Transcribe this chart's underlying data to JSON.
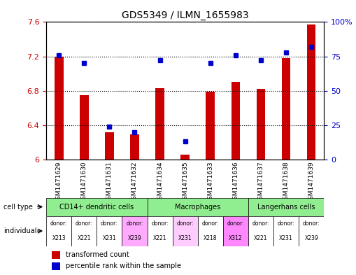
{
  "title": "GDS5349 / ILMN_1655983",
  "samples": [
    "GSM1471629",
    "GSM1471630",
    "GSM1471631",
    "GSM1471632",
    "GSM1471634",
    "GSM1471635",
    "GSM1471633",
    "GSM1471636",
    "GSM1471637",
    "GSM1471638",
    "GSM1471639"
  ],
  "red_values": [
    7.2,
    6.75,
    6.32,
    6.29,
    6.83,
    6.06,
    6.79,
    6.9,
    6.82,
    7.18,
    7.57
  ],
  "blue_values": [
    76,
    70,
    24,
    20,
    72,
    13,
    70,
    76,
    72,
    78,
    82
  ],
  "ylim_left": [
    6.0,
    7.6
  ],
  "ylim_right": [
    0,
    100
  ],
  "yticks_left": [
    6.0,
    6.4,
    6.8,
    7.2,
    7.6
  ],
  "yticks_right": [
    0,
    25,
    50,
    75,
    100
  ],
  "ytick_labels_left": [
    "6",
    "6.4",
    "6.8",
    "7.2",
    "7.6"
  ],
  "ytick_labels_right": [
    "0",
    "25",
    "50",
    "75",
    "100%"
  ],
  "cell_types": [
    {
      "label": "CD14+ dendritic cells",
      "start": 0,
      "end": 4,
      "color": "#90ee90"
    },
    {
      "label": "Macrophages",
      "start": 4,
      "end": 8,
      "color": "#90ee90"
    },
    {
      "label": "Langerhans cells",
      "start": 8,
      "end": 11,
      "color": "#90ee90"
    }
  ],
  "individuals": [
    {
      "donor": "X213",
      "col": 0,
      "color": "#ffffff"
    },
    {
      "donor": "X221",
      "col": 1,
      "color": "#ffffff"
    },
    {
      "donor": "X231",
      "col": 2,
      "color": "#ffffff"
    },
    {
      "donor": "X239",
      "col": 3,
      "color": "#ffaaff"
    },
    {
      "donor": "X221",
      "col": 4,
      "color": "#ffffff"
    },
    {
      "donor": "X231",
      "col": 5,
      "color": "#ffaaff"
    },
    {
      "donor": "X218",
      "col": 6,
      "color": "#ffffff"
    },
    {
      "donor": "X312",
      "col": 7,
      "color": "#ff88ff"
    },
    {
      "donor": "X221",
      "col": 8,
      "color": "#ffffff"
    },
    {
      "donor": "X231",
      "col": 9,
      "color": "#ffffff"
    },
    {
      "donor": "X239",
      "col": 10,
      "color": "#ffffff"
    }
  ],
  "cell_type_row_color": "#90ee90",
  "individual_row_bg": "#ffccff",
  "bar_color_red": "#cc0000",
  "dot_color_blue": "#0000cc",
  "background_color": "#ffffff",
  "grid_color": "#000000",
  "tick_color_left": "#cc0000",
  "tick_color_right": "#0000cc"
}
